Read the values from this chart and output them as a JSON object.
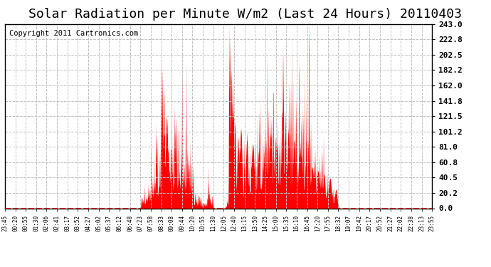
{
  "title": "Solar Radiation per Minute W/m2 (Last 24 Hours) 20110403",
  "copyright": "Copyright 2011 Cartronics.com",
  "yticks": [
    0.0,
    20.2,
    40.5,
    60.8,
    81.0,
    101.2,
    121.5,
    141.8,
    162.0,
    182.2,
    202.5,
    222.8,
    243.0
  ],
  "ymax": 243.0,
  "ymin": 0.0,
  "fill_color": "#ff0000",
  "grid_color": "#c0c0c0",
  "bg_color": "#ffffff",
  "title_fontsize": 13,
  "copyright_fontsize": 7.5,
  "xtick_labels": [
    "23:45",
    "00:20",
    "00:55",
    "01:30",
    "02:06",
    "02:41",
    "03:17",
    "03:52",
    "04:27",
    "05:02",
    "05:37",
    "06:12",
    "06:48",
    "07:23",
    "07:58",
    "08:33",
    "09:08",
    "09:44",
    "10:20",
    "10:55",
    "11:30",
    "12:05",
    "12:40",
    "13:15",
    "13:50",
    "14:25",
    "15:00",
    "15:35",
    "16:10",
    "16:45",
    "17:20",
    "17:55",
    "18:32",
    "19:07",
    "19:42",
    "20:17",
    "20:52",
    "21:27",
    "22:02",
    "22:38",
    "23:13",
    "23:55"
  ],
  "num_points": 1440
}
